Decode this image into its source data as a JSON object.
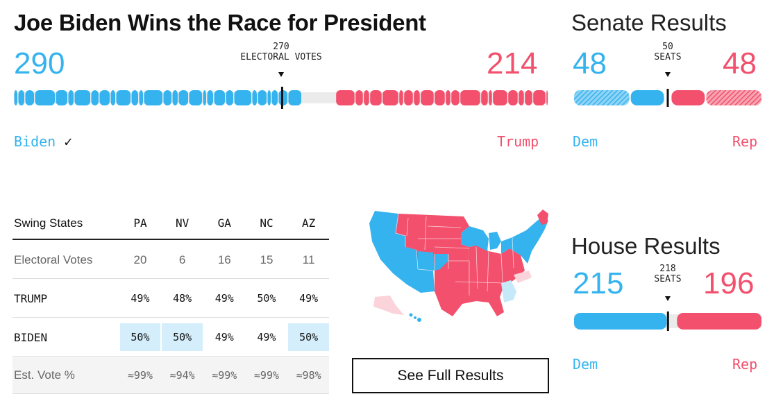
{
  "president": {
    "title": "Joe Biden Wins the Race for President",
    "dem_votes": "290",
    "rep_votes": "214",
    "threshold_value": "270",
    "threshold_label": "ELECTORAL VOTES",
    "dem_name": "Biden",
    "winner_check": "✓",
    "rep_name": "Trump"
  },
  "senate": {
    "title": "Senate Results",
    "dem": "48",
    "rep": "48",
    "threshold_value": "50",
    "threshold_label": "SEATS",
    "dem_label": "Dem",
    "rep_label": "Rep"
  },
  "house": {
    "title": "House Results",
    "dem": "215",
    "rep": "196",
    "threshold_value": "218",
    "threshold_label": "SEATS",
    "dem_label": "Dem",
    "rep_label": "Rep"
  },
  "swing_table": {
    "header": [
      "Swing States",
      "PA",
      "NV",
      "GA",
      "NC",
      "AZ"
    ],
    "rows": [
      {
        "label": "Electoral Votes",
        "cells": [
          "20",
          "6",
          "16",
          "15",
          "11"
        ]
      },
      {
        "label": "TRUMP",
        "cells": [
          "49%",
          "48%",
          "49%",
          "50%",
          "49%"
        ]
      },
      {
        "label": "BIDEN",
        "cells": [
          "50%",
          "50%",
          "49%",
          "49%",
          "50%"
        ]
      },
      {
        "label": "Est. Vote %",
        "cells": [
          "≈99%",
          "≈94%",
          "≈99%",
          "≈99%",
          "≈98%"
        ]
      }
    ]
  },
  "see_full_results": "See Full Results",
  "colors": {
    "dem": "#35b3ee",
    "rep": "#f2506c",
    "undecided": "#ebebeb",
    "highlight": "#d4eefb"
  },
  "chart_data": [
    {
      "type": "bar",
      "title": "Joe Biden Wins the Race for President",
      "series": [
        {
          "name": "Biden",
          "values": [
            290
          ]
        },
        {
          "name": "Trump",
          "values": [
            214
          ]
        }
      ],
      "total": 538,
      "threshold": 270
    },
    {
      "type": "bar",
      "title": "Senate Results",
      "series": [
        {
          "name": "Dem",
          "values": [
            48
          ]
        },
        {
          "name": "Rep",
          "values": [
            48
          ]
        }
      ],
      "total": 100,
      "threshold": 50
    },
    {
      "type": "bar",
      "title": "House Results",
      "series": [
        {
          "name": "Dem",
          "values": [
            215
          ]
        },
        {
          "name": "Rep",
          "values": [
            196
          ]
        }
      ],
      "total": 435,
      "threshold": 218
    }
  ]
}
